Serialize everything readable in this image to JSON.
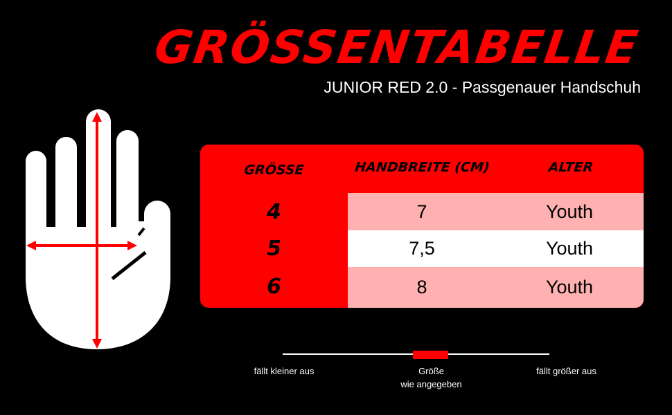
{
  "title": "GRÖSSENTABELLE",
  "subtitle": "JUNIOR RED 2.0 - Passgenauer Handschuh",
  "table": {
    "headers": [
      "GRÖSSE",
      "HANDBREITE (CM)",
      "ALTER"
    ],
    "rows": [
      {
        "size": "4",
        "width": "7",
        "age": "Youth"
      },
      {
        "size": "5",
        "width": "7,5",
        "age": "Youth"
      },
      {
        "size": "6",
        "width": "8",
        "age": "Youth"
      }
    ]
  },
  "fit_scale": {
    "left_label": "fällt kleiner aus",
    "center_label_1": "Größe",
    "center_label_2": "wie angegeben",
    "right_label": "fällt größer aus"
  },
  "colors": {
    "accent": "#ff0000",
    "row_light": "#ffb0b0",
    "row_white": "#ffffff",
    "background": "#000000"
  }
}
